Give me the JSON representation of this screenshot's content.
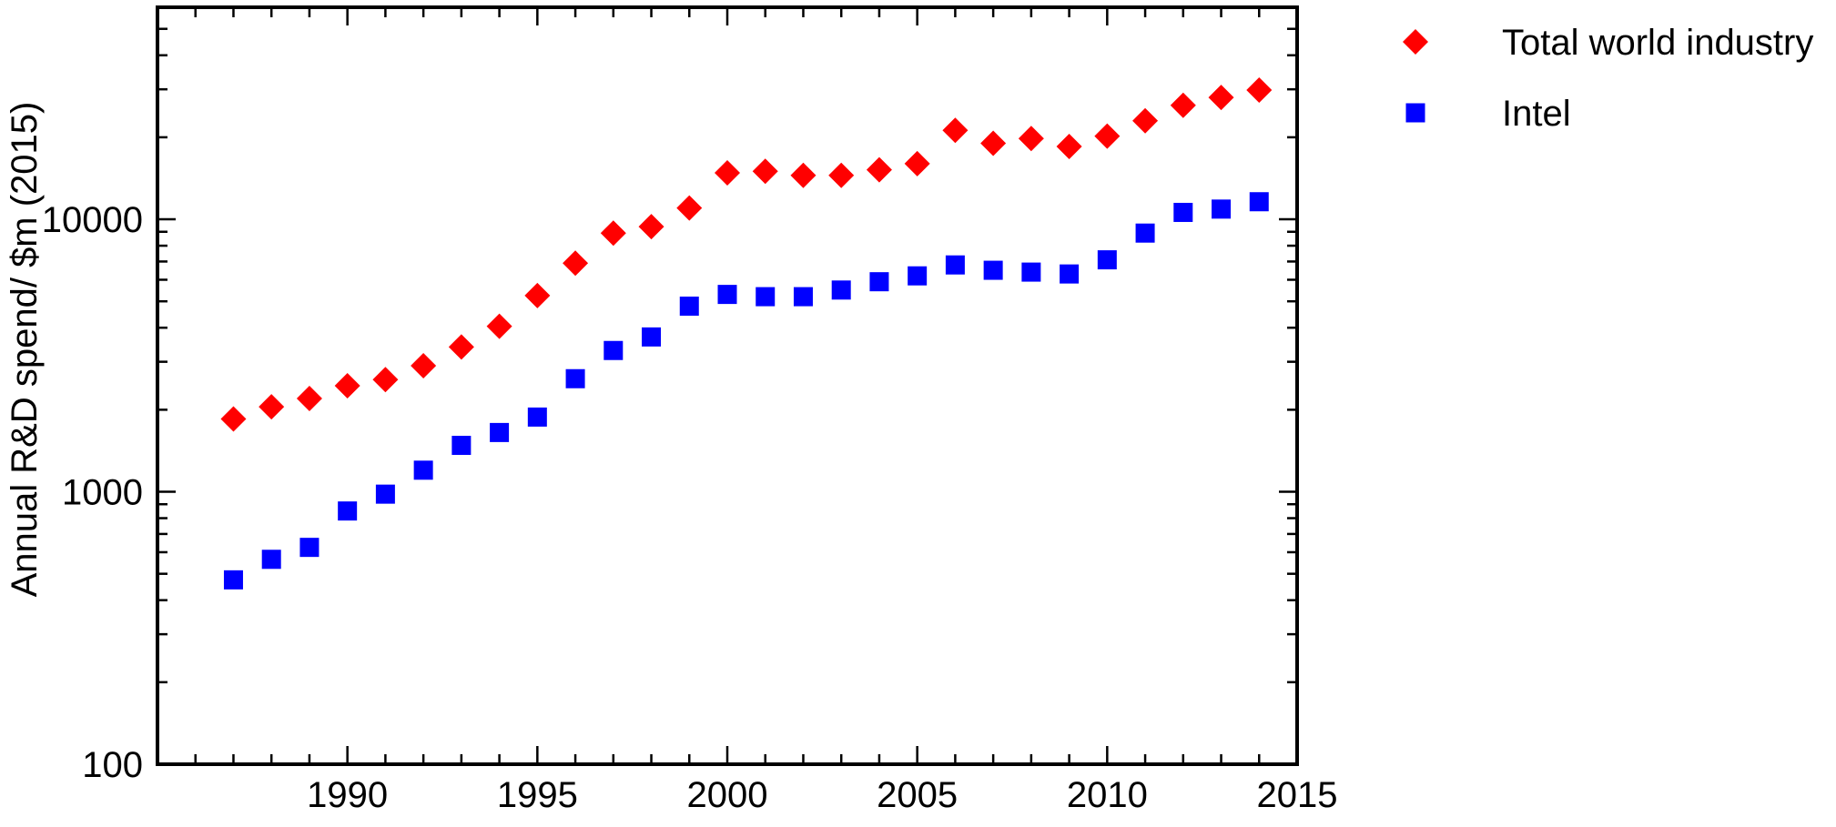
{
  "chart_data": {
    "type": "scatter",
    "title": "",
    "xlabel": "",
    "ylabel": "Annual R&D spend/ $m (2015)",
    "y_scale": "log",
    "xlim": [
      1985,
      2015
    ],
    "ylim": [
      100,
      60000
    ],
    "x_ticks": [
      1990,
      1995,
      2000,
      2005,
      2010,
      2015
    ],
    "x_tick_labels": [
      "1990",
      "1995",
      "2000",
      "2005",
      "2010",
      "2015"
    ],
    "y_ticks": [
      100,
      1000,
      10000
    ],
    "y_tick_labels": [
      "100",
      "1000",
      "10000"
    ],
    "grid": false,
    "legend_position": "right",
    "series": [
      {
        "name": "Total world industry",
        "marker": "diamond",
        "color": "#ff0000",
        "x": [
          1987,
          1988,
          1989,
          1990,
          1991,
          1992,
          1993,
          1994,
          1995,
          1996,
          1997,
          1998,
          1999,
          2000,
          2001,
          2002,
          2003,
          2004,
          2005,
          2006,
          2007,
          2008,
          2009,
          2010,
          2011,
          2012,
          2013,
          2014
        ],
        "y": [
          1850,
          2050,
          2200,
          2450,
          2580,
          2900,
          3400,
          4050,
          5250,
          6900,
          8900,
          9400,
          11000,
          14800,
          15000,
          14500,
          14500,
          15200,
          16000,
          21200,
          19000,
          19800,
          18500,
          20200,
          23000,
          26200,
          28000,
          29800
        ]
      },
      {
        "name": "Intel",
        "marker": "square",
        "color": "#0000ff",
        "x": [
          1987,
          1988,
          1989,
          1990,
          1991,
          1992,
          1993,
          1994,
          1995,
          1996,
          1997,
          1998,
          1999,
          2000,
          2001,
          2002,
          2003,
          2004,
          2005,
          2006,
          2007,
          2008,
          2009,
          2010,
          2011,
          2012,
          2013,
          2014
        ],
        "y": [
          475,
          565,
          625,
          850,
          980,
          1200,
          1480,
          1650,
          1880,
          2600,
          3300,
          3700,
          4800,
          5300,
          5200,
          5200,
          5500,
          5900,
          6200,
          6800,
          6500,
          6400,
          6300,
          7100,
          8900,
          10600,
          10900,
          11600
        ]
      }
    ]
  }
}
